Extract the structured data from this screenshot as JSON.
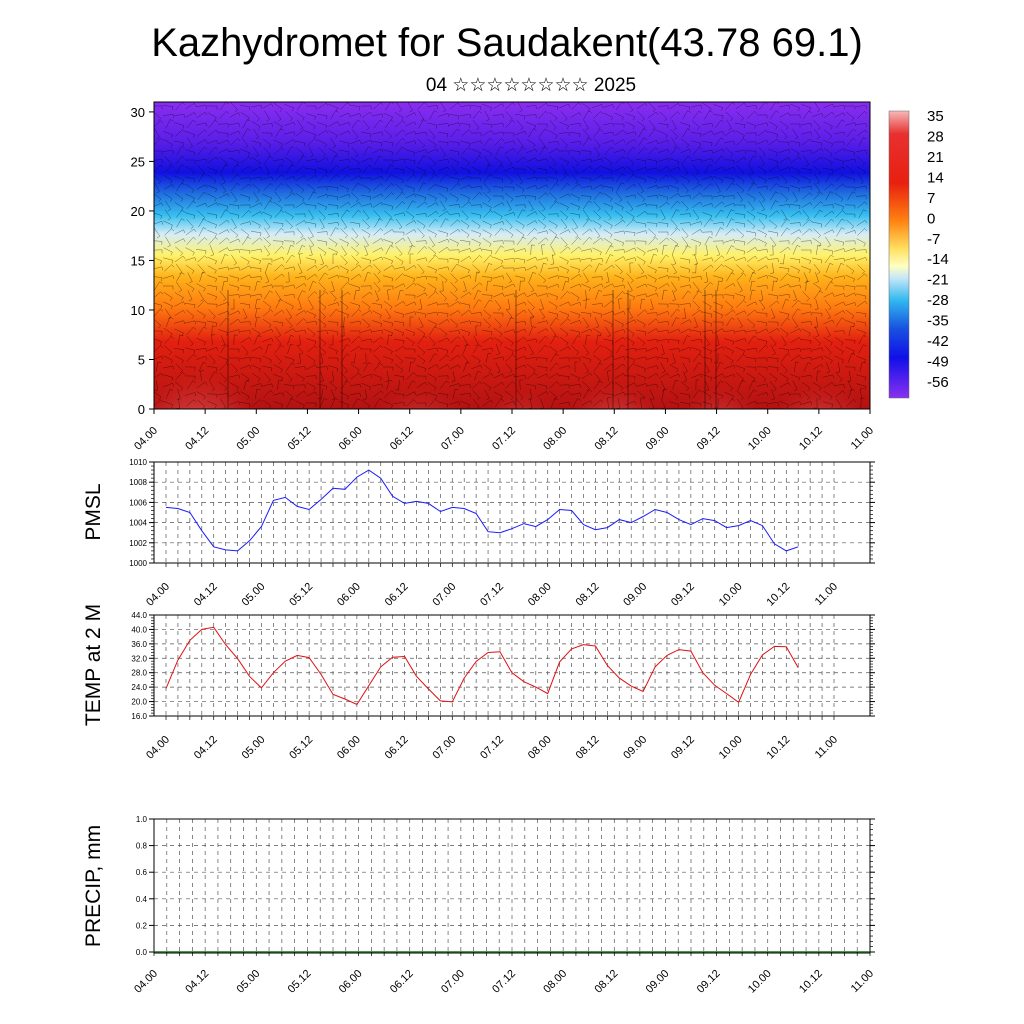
{
  "title": "Kazhydromet for Saudakent(43.78 69.1)",
  "subtitle": "04 ☆☆☆☆☆☆☆☆ 2025",
  "time_ticks": [
    "04.00",
    "04.12",
    "05.00",
    "05.12",
    "06.00",
    "06.12",
    "07.00",
    "07.12",
    "08.00",
    "08.12",
    "09.00",
    "09.12",
    "10.00",
    "10.12",
    "11.00"
  ],
  "colors": {
    "pmsl_line": "#1a1aff",
    "temp_line": "#e01010",
    "grid": "#555555"
  },
  "chart_data": [
    {
      "type": "heatmap",
      "name": "vertical-section",
      "ylim": [
        0,
        31
      ],
      "y_ticks": [
        "0",
        "5",
        "10",
        "15",
        "20",
        "25",
        "30"
      ],
      "colorbar": {
        "labels": [
          "35",
          "28",
          "21",
          "14",
          "7",
          "0",
          "-7",
          "-14",
          "-21",
          "-28",
          "-35",
          "-42",
          "-49",
          "-56"
        ]
      }
    },
    {
      "type": "line",
      "name": "pmsl",
      "ylabel": "PMSL",
      "ylim": [
        1000,
        1010
      ],
      "y_ticks": [
        "1000",
        "1002",
        "1004",
        "1006",
        "1008",
        "1010"
      ],
      "x_hours": [
        0,
        3,
        6,
        9,
        12,
        15,
        18,
        21,
        24,
        27,
        30,
        33,
        36,
        39,
        42,
        45,
        48,
        51,
        54,
        57,
        60,
        63,
        66,
        69,
        72,
        75,
        78,
        81,
        84,
        87,
        90,
        93,
        96,
        99,
        102,
        105,
        108,
        111,
        114,
        117,
        120,
        123,
        126,
        129,
        132,
        135,
        138,
        141,
        144,
        147,
        150,
        153,
        156,
        159
      ],
      "values": [
        1005.5,
        1005.4,
        1005.0,
        1003.2,
        1001.6,
        1001.3,
        1001.2,
        1002.2,
        1003.6,
        1006.2,
        1006.5,
        1005.6,
        1005.3,
        1006.3,
        1007.4,
        1007.3,
        1008.5,
        1009.2,
        1008.4,
        1006.6,
        1005.9,
        1006.1,
        1005.9,
        1005.1,
        1005.5,
        1005.4,
        1004.9,
        1003.1,
        1003.0,
        1003.4,
        1003.9,
        1003.6,
        1004.3,
        1005.3,
        1005.2,
        1003.8,
        1003.3,
        1003.5,
        1004.3,
        1004.0,
        1004.6,
        1005.3,
        1005.0,
        1004.3,
        1003.8,
        1004.4,
        1004.2,
        1003.5,
        1003.7,
        1004.2,
        1003.7,
        1001.9,
        1001.2,
        1001.6
      ]
    },
    {
      "type": "line",
      "name": "temp",
      "ylabel": "TEMP at 2 M",
      "ylim": [
        16,
        44
      ],
      "y_ticks": [
        "16.0",
        "20.0",
        "24.0",
        "28.0",
        "32.0",
        "36.0",
        "40.0",
        "44.0"
      ],
      "x_hours": [
        0,
        3,
        6,
        9,
        12,
        15,
        18,
        21,
        24,
        27,
        30,
        33,
        36,
        39,
        42,
        45,
        48,
        51,
        54,
        57,
        60,
        63,
        66,
        69,
        72,
        75,
        78,
        81,
        84,
        87,
        90,
        93,
        96,
        99,
        102,
        105,
        108,
        111,
        114,
        117,
        120,
        123,
        126,
        129,
        132,
        135,
        138,
        141,
        144,
        147,
        150,
        153,
        156,
        159
      ],
      "values": [
        23.6,
        31.5,
        37.0,
        40.0,
        40.6,
        35.8,
        31.9,
        27.0,
        23.8,
        28.0,
        31.2,
        32.8,
        32.2,
        27.5,
        22.0,
        20.7,
        19.2,
        24.4,
        29.6,
        32.3,
        32.5,
        27.0,
        23.5,
        20.2,
        19.9,
        26.5,
        31.1,
        33.6,
        33.8,
        28.0,
        25.5,
        24.0,
        22.2,
        31.0,
        34.6,
        35.8,
        35.4,
        30.0,
        26.5,
        24.3,
        22.8,
        29.6,
        32.8,
        34.4,
        34.0,
        28.0,
        24.5,
        22.2,
        19.8,
        27.5,
        32.9,
        35.3,
        35.2,
        29.4
      ]
    },
    {
      "type": "line",
      "name": "precip",
      "ylabel": "PRECIP, mm",
      "ylim": [
        0,
        1
      ],
      "y_ticks": [
        "0.0",
        "0.2",
        "0.4",
        "0.6",
        "0.8",
        "1.0"
      ],
      "values": []
    }
  ]
}
